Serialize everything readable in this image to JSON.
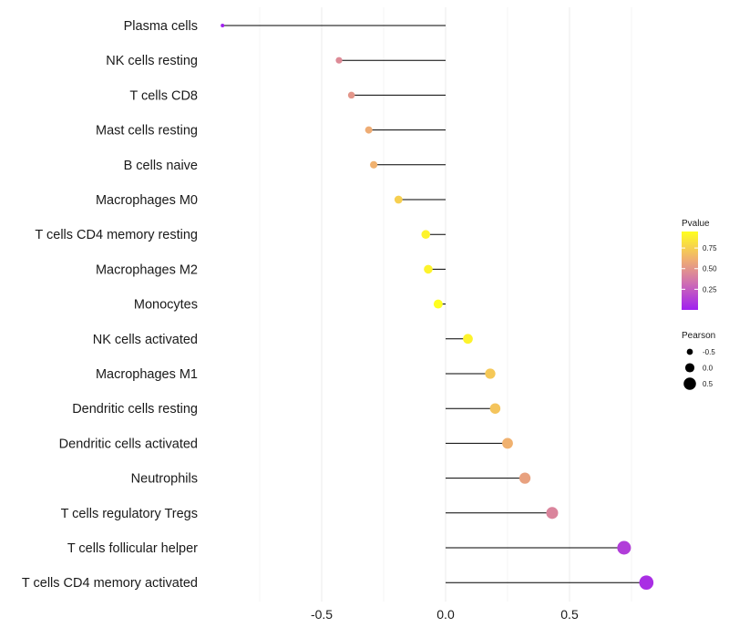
{
  "chart_data": {
    "type": "lollipop",
    "categories": [
      "Plasma cells",
      "NK cells resting",
      "T cells CD8",
      "Mast cells resting",
      "B cells naive",
      "Macrophages M0",
      "T cells CD4 memory resting",
      "Macrophages M2",
      "Monocytes",
      "NK cells activated",
      "Macrophages M1",
      "Dendritic cells resting",
      "Dendritic cells activated",
      "Neutrophils",
      "T cells regulatory  Tregs",
      "T cells follicular helper",
      "T cells CD4 memory activated"
    ],
    "pearson": [
      -0.9,
      -0.43,
      -0.38,
      -0.31,
      -0.29,
      -0.19,
      -0.08,
      -0.07,
      -0.03,
      0.09,
      0.18,
      0.2,
      0.25,
      0.32,
      0.43,
      0.72,
      0.81
    ],
    "pvalue": [
      0.01,
      0.45,
      0.5,
      0.6,
      0.62,
      0.75,
      0.9,
      0.9,
      0.95,
      0.9,
      0.72,
      0.7,
      0.62,
      0.55,
      0.42,
      0.12,
      0.06
    ],
    "xlim": [
      -1.0,
      0.85
    ],
    "xticks": [
      -0.5,
      0.0,
      0.5
    ],
    "xtick_labels": [
      "-0.5",
      "0.0",
      "0.5"
    ],
    "colorbar": {
      "title": "Pvalue",
      "ticks": [
        0.75,
        0.5,
        0.25
      ],
      "tick_labels": [
        "0.75",
        "0.50",
        "0.25"
      ],
      "range": [
        0.0,
        0.95
      ],
      "low_color": "#a020f0",
      "high_color": "#ffff00"
    },
    "size_legend": {
      "title": "Pearson",
      "labels": [
        "-0.5",
        "0.0",
        "0.5"
      ],
      "values": [
        -0.5,
        0.0,
        0.5
      ]
    },
    "grid": true,
    "stem_color": "#000000"
  }
}
